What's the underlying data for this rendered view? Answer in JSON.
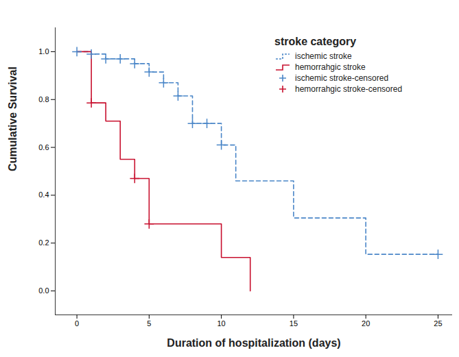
{
  "chart_data": {
    "type": "line",
    "x_label": "Duration of hospitalization (days)",
    "y_label": "Cumulative Survival",
    "legend_title": "stroke category",
    "legend": "top-right",
    "grid": false,
    "xlim": [
      -1.5,
      26
    ],
    "xticks": [
      0,
      5,
      10,
      15,
      20,
      25
    ],
    "ylim": [
      -0.1,
      1.1
    ],
    "yticks": [
      {
        "value": 0,
        "label": "0.0"
      },
      {
        "value": 0.2,
        "label": "0.2"
      },
      {
        "value": 0.4,
        "label": "0.4"
      },
      {
        "value": 0.6,
        "label": "0.6"
      },
      {
        "value": 0.8,
        "label": "0.8"
      },
      {
        "value": 1,
        "label": "1.0"
      }
    ],
    "series": [
      {
        "name": "ischemic stroke",
        "type": "line",
        "color": "#4a86c8",
        "line_style": "dashed",
        "x": [
          0,
          1,
          2,
          4,
          5,
          6,
          7,
          8,
          10,
          11,
          15,
          20,
          25
        ],
        "values": [
          1,
          0.99,
          0.97,
          0.95,
          0.915,
          0.87,
          0.815,
          0.7,
          0.61,
          0.46,
          0.305,
          0.153,
          0.153
        ]
      },
      {
        "name": "hemorrahgic stroke",
        "type": "line",
        "color": "#c8102e",
        "line_style": "solid",
        "x": [
          0,
          1,
          2,
          3,
          4,
          5,
          10,
          12
        ],
        "values": [
          1,
          0.786,
          0.71,
          0.55,
          0.47,
          0.28,
          0.14,
          0
        ]
      },
      {
        "name": "ischemic stroke-censored",
        "type": "scatter",
        "color": "#4a86c8",
        "marker": "plus",
        "x": [
          0,
          1,
          2,
          3,
          4,
          5,
          6,
          7,
          8,
          9,
          10,
          25
        ],
        "values": [
          1,
          0.99,
          0.97,
          0.97,
          0.95,
          0.915,
          0.87,
          0.815,
          0.7,
          0.7,
          0.61,
          0.153
        ]
      },
      {
        "name": "hemorrahgic stroke-censored",
        "type": "scatter",
        "color": "#c8102e",
        "marker": "plus",
        "x": [
          1,
          4,
          5
        ],
        "values": [
          0.786,
          0.47,
          0.28
        ]
      }
    ]
  }
}
